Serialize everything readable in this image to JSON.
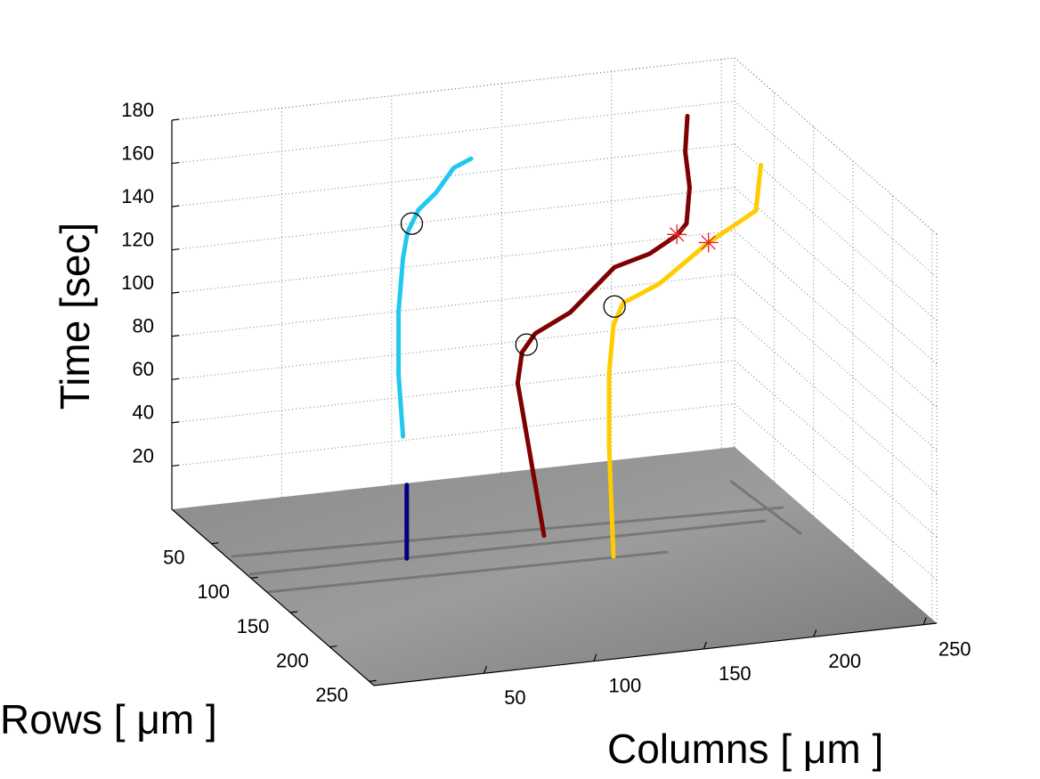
{
  "chart_data": {
    "type": "line3d",
    "xlabel": "Columns [ μm ]",
    "ylabel": "Rows [ μm ]",
    "zlabel": "Time [sec]",
    "xlim": [
      0,
      256
    ],
    "ylim": [
      0,
      256
    ],
    "zlim": [
      0,
      180
    ],
    "xticks": [
      50,
      100,
      150,
      200,
      250
    ],
    "yticks": [
      50,
      100,
      150,
      200,
      250
    ],
    "zticks": [
      20,
      40,
      60,
      80,
      100,
      120,
      140,
      160,
      180
    ],
    "grid": true,
    "series": [
      {
        "color": "#00007f",
        "x": [
          72,
          72,
          72
        ],
        "y": [
          97,
          97,
          97
        ],
        "z": [
          0,
          17,
          34
        ]
      },
      {
        "color": "#22c8ee",
        "x": [
          80,
          78,
          78,
          80,
          82,
          87,
          95,
          103,
          111
        ],
        "y": [
          70,
          70,
          70,
          70,
          70,
          70,
          70,
          70,
          70
        ],
        "z": [
          47,
          76,
          105,
          129.5,
          141,
          151,
          158,
          168.6,
          172
        ]
      },
      {
        "color": "#7f0000",
        "x": [
          137,
          125,
          127,
          133,
          149,
          169,
          185,
          201,
          209,
          214,
          212,
          213
        ],
        "y": [
          90,
          90,
          90,
          90,
          90,
          90,
          90,
          80,
          70,
          60,
          60,
          60
        ],
        "z": [
          1,
          73,
          87,
          95,
          103,
          121.6,
          126,
          129.6,
          131,
          144,
          160.6,
          177
        ]
      },
      {
        "color": "#ffcc00",
        "x": [
          156,
          154,
          154,
          156,
          164,
          184,
          210,
          227,
          237,
          241
        ],
        "y": [
          125,
          125,
          125,
          125,
          115,
          105,
          95,
          85,
          80,
          75
        ],
        "z": [
          0.4,
          52,
          85,
          107.5,
          113.6,
          117,
          130,
          134,
          137,
          156
        ]
      }
    ],
    "markers": [
      {
        "type": "circle",
        "color": "#000000",
        "x": 84,
        "y": 70,
        "z": 145
      },
      {
        "type": "circle",
        "color": "#000000",
        "x": 129,
        "y": 90,
        "z": 90.3
      },
      {
        "type": "circle",
        "color": "#000000",
        "x": 159,
        "y": 118,
        "z": 113.5
      },
      {
        "type": "star",
        "color": "#e8202a",
        "x": 201,
        "y": 80,
        "z": 130
      },
      {
        "type": "star",
        "color": "#e8202a",
        "x": 210,
        "y": 95,
        "z": 130
      }
    ]
  }
}
